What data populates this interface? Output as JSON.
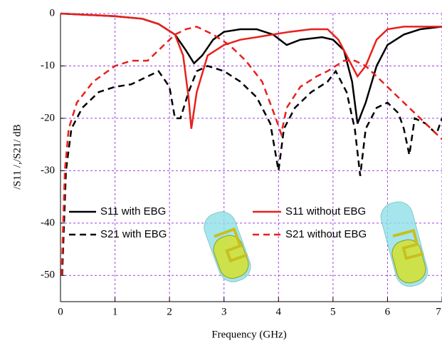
{
  "chart_data": {
    "type": "line",
    "x_label": "Frequency (GHz)",
    "y_label": "/S11 /,/S21/  dB",
    "xlim": [
      0,
      7
    ],
    "ylim": [
      -55,
      0
    ],
    "xticks": [
      0,
      1,
      2,
      3,
      4,
      5,
      6,
      7
    ],
    "yticks": [
      0,
      -10,
      -20,
      -30,
      -40,
      -50
    ],
    "grid": true,
    "series": [
      {
        "name": "S11 with EBG",
        "color": "#000000",
        "dash": false,
        "x": [
          0,
          1,
          1.5,
          1.8,
          2.1,
          2.3,
          2.45,
          2.6,
          2.8,
          3.0,
          3.3,
          3.6,
          3.9,
          4.15,
          4.4,
          4.8,
          5.0,
          5.2,
          5.35,
          5.45,
          5.6,
          5.8,
          6.0,
          6.3,
          6.6,
          7.0
        ],
        "values": [
          0,
          -0.5,
          -1,
          -2,
          -4,
          -7,
          -9.5,
          -8,
          -5,
          -3.5,
          -3,
          -3,
          -4,
          -6,
          -5,
          -4.5,
          -5,
          -7,
          -13,
          -21,
          -17,
          -10,
          -6,
          -4,
          -3,
          -2.5
        ]
      },
      {
        "name": "S21 with EBG",
        "color": "#000000",
        "dash": true,
        "x": [
          0.03,
          0.1,
          0.2,
          0.4,
          0.7,
          1.0,
          1.3,
          1.6,
          1.8,
          2.0,
          2.1,
          2.2,
          2.35,
          2.5,
          2.7,
          3.0,
          3.3,
          3.6,
          3.85,
          4.0,
          4.1,
          4.3,
          4.6,
          4.9,
          5.05,
          5.25,
          5.4,
          5.5,
          5.6,
          5.8,
          6.0,
          6.2,
          6.3,
          6.4,
          6.5,
          6.7,
          6.9,
          7.0
        ],
        "values": [
          -50,
          -30,
          -22,
          -18,
          -15,
          -14,
          -13.5,
          -12,
          -11,
          -14,
          -20,
          -20,
          -15,
          -11,
          -10,
          -11,
          -13,
          -16,
          -21,
          -30,
          -22,
          -18,
          -15,
          -13,
          -11,
          -15,
          -22,
          -31,
          -22,
          -18,
          -17,
          -19,
          -22,
          -27,
          -20,
          -21,
          -23,
          -20
        ]
      },
      {
        "name": "S11 without EBG",
        "color": "#e8201c",
        "dash": false,
        "x": [
          0,
          1,
          1.5,
          1.8,
          2.1,
          2.25,
          2.35,
          2.4,
          2.5,
          2.7,
          3.0,
          3.3,
          3.6,
          3.9,
          4.2,
          4.6,
          4.9,
          5.1,
          5.3,
          5.45,
          5.6,
          5.8,
          6.0,
          6.3,
          7.0
        ],
        "values": [
          0,
          -0.5,
          -1,
          -2,
          -4,
          -8,
          -16,
          -22,
          -15,
          -8,
          -6,
          -5,
          -4.5,
          -4,
          -3.5,
          -3,
          -3,
          -5,
          -9,
          -12,
          -10,
          -5,
          -3,
          -2.5,
          -2.5
        ]
      },
      {
        "name": "S21 without EBG",
        "color": "#e8201c",
        "dash": true,
        "x": [
          0.02,
          0.08,
          0.15,
          0.3,
          0.6,
          1.0,
          1.3,
          1.6,
          1.8,
          2.1,
          2.3,
          2.5,
          2.8,
          3.1,
          3.4,
          3.7,
          3.95,
          4.05,
          4.15,
          4.4,
          4.7,
          4.9,
          5.2,
          5.4,
          5.6,
          5.9,
          6.2,
          6.5,
          6.8,
          7.0
        ],
        "values": [
          -50,
          -30,
          -22,
          -17,
          -13,
          -10,
          -9,
          -9,
          -7,
          -4,
          -3,
          -2.5,
          -4,
          -6,
          -9,
          -13,
          -20,
          -23,
          -18,
          -14,
          -12,
          -11,
          -9,
          -9,
          -10,
          -13,
          -16,
          -19,
          -22,
          -24
        ]
      }
    ]
  }
}
